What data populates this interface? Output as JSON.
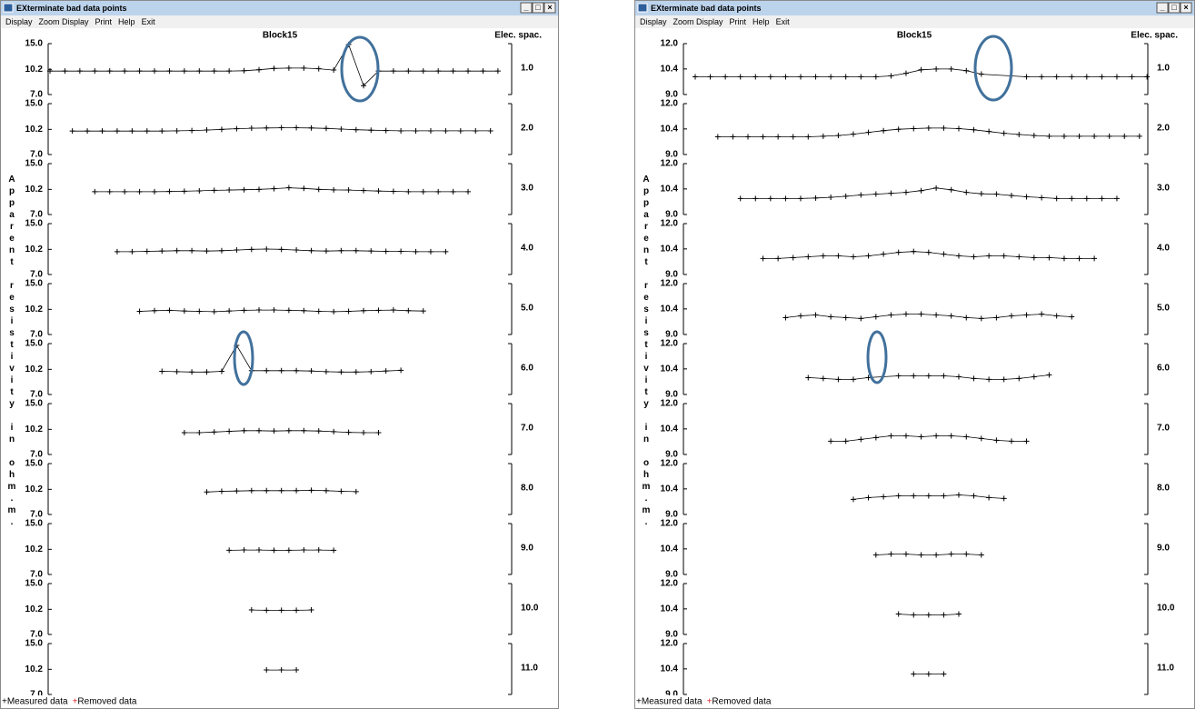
{
  "windows": [
    {
      "title": "EXterminate bad data points",
      "menu": [
        "Display",
        "Zoom Display",
        "Print",
        "Help",
        "Exit"
      ],
      "plot_title": "Block15",
      "right_label": "Elec. spac.",
      "y_label": "Apparent resistivity in ohm.m.",
      "log_scale": true,
      "ylim": [
        7,
        15
      ],
      "yticks": [
        {
          "value": 15,
          "label": "15.0"
        },
        {
          "value": 10.2,
          "label": "10.2"
        },
        {
          "value": 7,
          "label": "7.0"
        }
      ],
      "legend": [
        "Measured data",
        "Removed data"
      ],
      "rows": [
        {
          "spacing": "1.0",
          "x": [
            1.5,
            2.5,
            3.5,
            4.5,
            5.5,
            6.5,
            7.5,
            8.5,
            9.5,
            10.5,
            11.5,
            12.5,
            13.5,
            14.5,
            15.5,
            16.5,
            17.5,
            18.5,
            19.5,
            20.5,
            21.5,
            22.5,
            23.5,
            24.5,
            25.5,
            26.5,
            27.5,
            28.5,
            29.5,
            30.5,
            31.5
          ],
          "values": [
            9.95,
            9.95,
            9.95,
            9.95,
            9.95,
            9.95,
            9.95,
            9.95,
            9.95,
            9.95,
            9.95,
            9.95,
            9.95,
            10.0,
            10.15,
            10.35,
            10.4,
            10.4,
            10.3,
            10.1,
            14.8,
            8.0,
            9.95,
            9.95,
            9.95,
            9.95,
            9.95,
            9.95,
            9.95,
            9.95,
            9.95
          ]
        },
        {
          "spacing": "2.0",
          "x": [
            3,
            4,
            5,
            6,
            7,
            8,
            9,
            10,
            11,
            12,
            13,
            14,
            15,
            16,
            17,
            18,
            19,
            20,
            21,
            22,
            23,
            24,
            25,
            26,
            27,
            28,
            29,
            30,
            31
          ],
          "values": [
            9.95,
            9.95,
            9.95,
            9.95,
            9.95,
            9.95,
            9.95,
            9.98,
            10.02,
            10.1,
            10.2,
            10.3,
            10.38,
            10.42,
            10.45,
            10.45,
            10.42,
            10.35,
            10.25,
            10.15,
            10.08,
            10.02,
            9.98,
            9.98,
            9.98,
            9.98,
            9.98,
            9.98,
            9.98
          ]
        },
        {
          "spacing": "3.0",
          "x": [
            4.5,
            5.5,
            6.5,
            7.5,
            8.5,
            9.5,
            10.5,
            11.5,
            12.5,
            13.5,
            14.5,
            15.5,
            16.5,
            17.5,
            18.5,
            19.5,
            20.5,
            21.5,
            22.5,
            23.5,
            24.5,
            25.5,
            26.5,
            27.5,
            28.5,
            29.5
          ],
          "values": [
            9.85,
            9.85,
            9.85,
            9.85,
            9.85,
            9.88,
            9.92,
            9.98,
            10.05,
            10.1,
            10.15,
            10.2,
            10.3,
            10.45,
            10.35,
            10.2,
            10.12,
            10.1,
            10.02,
            9.95,
            9.9,
            9.85,
            9.85,
            9.85,
            9.85,
            9.85
          ]
        },
        {
          "spacing": "4.0",
          "x": [
            6,
            7,
            8,
            9,
            10,
            11,
            12,
            13,
            14,
            15,
            16,
            17,
            18,
            19,
            20,
            21,
            22,
            23,
            24,
            25,
            26,
            27,
            28
          ],
          "values": [
            9.85,
            9.85,
            9.9,
            9.95,
            10.0,
            10.0,
            9.95,
            10.0,
            10.1,
            10.2,
            10.25,
            10.2,
            10.1,
            10.0,
            9.95,
            10.0,
            10.0,
            9.95,
            9.9,
            9.9,
            9.85,
            9.85,
            9.85
          ]
        },
        {
          "spacing": "5.0",
          "x": [
            7.5,
            8.5,
            9.5,
            10.5,
            11.5,
            12.5,
            13.5,
            14.5,
            15.5,
            16.5,
            17.5,
            18.5,
            19.5,
            20.5,
            21.5,
            22.5,
            23.5,
            24.5,
            25.5,
            26.5
          ],
          "values": [
            9.9,
            10.0,
            10.05,
            9.95,
            9.9,
            9.85,
            9.95,
            10.05,
            10.1,
            10.1,
            10.05,
            10.0,
            9.9,
            9.85,
            9.9,
            10.0,
            10.05,
            10.1,
            10.0,
            9.95
          ]
        },
        {
          "spacing": "6.0",
          "x": [
            9,
            10,
            11,
            12,
            13,
            14,
            15,
            16,
            17,
            18,
            19,
            20,
            21,
            22,
            23,
            24,
            25
          ],
          "values": [
            9.9,
            9.85,
            9.8,
            9.8,
            9.9,
            14.6,
            10.0,
            10.0,
            10.0,
            10.0,
            9.95,
            9.85,
            9.8,
            9.8,
            9.85,
            9.95,
            10.05
          ]
        },
        {
          "spacing": "7.0",
          "x": [
            10.5,
            11.5,
            12.5,
            13.5,
            14.5,
            15.5,
            16.5,
            17.5,
            18.5,
            19.5,
            20.5,
            21.5,
            22.5,
            23.5
          ],
          "values": [
            9.7,
            9.7,
            9.8,
            9.9,
            10.0,
            10.0,
            9.95,
            10.0,
            10.0,
            9.95,
            9.85,
            9.75,
            9.7,
            9.7
          ]
        },
        {
          "spacing": "8.0",
          "x": [
            12,
            13,
            14,
            15,
            16,
            17,
            18,
            19,
            20,
            21,
            22
          ],
          "values": [
            9.8,
            9.9,
            9.95,
            10.0,
            10.0,
            10.0,
            10.0,
            10.05,
            10.0,
            9.9,
            9.85
          ]
        },
        {
          "spacing": "9.0",
          "x": [
            13.5,
            14.5,
            15.5,
            16.5,
            17.5,
            18.5,
            19.5,
            20.5
          ],
          "values": [
            10.05,
            10.1,
            10.1,
            10.05,
            10.05,
            10.1,
            10.1,
            10.05
          ]
        },
        {
          "spacing": "10.0",
          "x": [
            15,
            16,
            17,
            18,
            19
          ],
          "values": [
            10.1,
            10.05,
            10.05,
            10.05,
            10.1
          ]
        },
        {
          "spacing": "11.0",
          "x": [
            16,
            17,
            18
          ],
          "values": [
            10.1,
            10.1,
            10.1
          ]
        }
      ]
    },
    {
      "title": "EXterminate bad data points",
      "menu": [
        "Display",
        "Zoom Display",
        "Print",
        "Help",
        "Exit"
      ],
      "plot_title": "Block15",
      "right_label": "Elec. spac.",
      "y_label": "Apparent resistivity in ohm.m.",
      "log_scale": true,
      "ylim": [
        9,
        12
      ],
      "yticks": [
        {
          "value": 12,
          "label": "12.0"
        },
        {
          "value": 10.4,
          "label": "10.4"
        },
        {
          "value": 9,
          "label": "9.0"
        }
      ],
      "legend": [
        "Measured data",
        "Removed data"
      ],
      "rows": [
        {
          "spacing": "1.0",
          "x": [
            1.5,
            2.5,
            3.5,
            4.5,
            5.5,
            6.5,
            7.5,
            8.5,
            9.5,
            10.5,
            11.5,
            12.5,
            13.5,
            14.5,
            15.5,
            16.5,
            17.5,
            18.5,
            19.5,
            20.5,
            23.5,
            24.5,
            25.5,
            26.5,
            27.5,
            28.5,
            29.5,
            30.5,
            31.5
          ],
          "values": [
            9.95,
            9.95,
            9.95,
            9.95,
            9.95,
            9.95,
            9.95,
            9.95,
            9.95,
            9.95,
            9.95,
            9.95,
            9.95,
            10.0,
            10.15,
            10.35,
            10.4,
            10.4,
            10.3,
            10.1,
            9.95,
            9.95,
            9.95,
            9.95,
            9.95,
            9.95,
            9.95,
            9.95,
            9.95
          ]
        },
        {
          "spacing": "2.0",
          "x": [
            3,
            4,
            5,
            6,
            7,
            8,
            9,
            10,
            11,
            12,
            13,
            14,
            15,
            16,
            17,
            18,
            19,
            20,
            21,
            22,
            23,
            24,
            25,
            26,
            27,
            28,
            29,
            30,
            31
          ],
          "values": [
            9.95,
            9.95,
            9.95,
            9.95,
            9.95,
            9.95,
            9.95,
            9.98,
            10.02,
            10.1,
            10.2,
            10.3,
            10.38,
            10.42,
            10.45,
            10.45,
            10.42,
            10.35,
            10.25,
            10.15,
            10.08,
            10.02,
            9.98,
            9.98,
            9.98,
            9.98,
            9.98,
            9.98,
            9.98
          ]
        },
        {
          "spacing": "3.0",
          "x": [
            4.5,
            5.5,
            6.5,
            7.5,
            8.5,
            9.5,
            10.5,
            11.5,
            12.5,
            13.5,
            14.5,
            15.5,
            16.5,
            17.5,
            18.5,
            19.5,
            20.5,
            21.5,
            22.5,
            23.5,
            24.5,
            25.5,
            26.5,
            27.5,
            28.5,
            29.5
          ],
          "values": [
            9.85,
            9.85,
            9.85,
            9.85,
            9.85,
            9.88,
            9.92,
            9.98,
            10.05,
            10.1,
            10.15,
            10.2,
            10.3,
            10.45,
            10.35,
            10.2,
            10.12,
            10.1,
            10.02,
            9.95,
            9.9,
            9.85,
            9.85,
            9.85,
            9.85,
            9.85
          ]
        },
        {
          "spacing": "4.0",
          "x": [
            6,
            7,
            8,
            9,
            10,
            11,
            12,
            13,
            14,
            15,
            16,
            17,
            18,
            19,
            20,
            21,
            22,
            23,
            24,
            25,
            26,
            27,
            28
          ],
          "values": [
            9.85,
            9.85,
            9.9,
            9.95,
            10.0,
            10.0,
            9.95,
            10.0,
            10.1,
            10.2,
            10.25,
            10.2,
            10.1,
            10.0,
            9.95,
            10.0,
            10.0,
            9.95,
            9.9,
            9.9,
            9.85,
            9.85,
            9.85
          ]
        },
        {
          "spacing": "5.0",
          "x": [
            7.5,
            8.5,
            9.5,
            10.5,
            11.5,
            12.5,
            13.5,
            14.5,
            15.5,
            16.5,
            17.5,
            18.5,
            19.5,
            20.5,
            21.5,
            22.5,
            23.5,
            24.5,
            25.5,
            26.5
          ],
          "values": [
            9.9,
            10.0,
            10.05,
            9.95,
            9.9,
            9.85,
            9.95,
            10.05,
            10.1,
            10.1,
            10.05,
            10.0,
            9.9,
            9.85,
            9.9,
            10.0,
            10.05,
            10.1,
            10.0,
            9.95
          ]
        },
        {
          "spacing": "6.0",
          "x": [
            9,
            10,
            11,
            12,
            13,
            15,
            16,
            17,
            18,
            19,
            20,
            21,
            22,
            23,
            24,
            25
          ],
          "values": [
            9.9,
            9.85,
            9.8,
            9.8,
            9.9,
            10.0,
            10.0,
            10.0,
            10.0,
            9.95,
            9.85,
            9.8,
            9.8,
            9.85,
            9.95,
            10.05
          ]
        },
        {
          "spacing": "7.0",
          "x": [
            10.5,
            11.5,
            12.5,
            13.5,
            14.5,
            15.5,
            16.5,
            17.5,
            18.5,
            19.5,
            20.5,
            21.5,
            22.5,
            23.5
          ],
          "values": [
            9.7,
            9.7,
            9.8,
            9.9,
            10.0,
            10.0,
            9.95,
            10.0,
            10.0,
            9.95,
            9.85,
            9.75,
            9.7,
            9.7
          ]
        },
        {
          "spacing": "8.0",
          "x": [
            12,
            13,
            14,
            15,
            16,
            17,
            18,
            19,
            20,
            21,
            22
          ],
          "values": [
            9.8,
            9.9,
            9.95,
            10.0,
            10.0,
            10.0,
            10.0,
            10.05,
            10.0,
            9.9,
            9.85
          ]
        },
        {
          "spacing": "9.0",
          "x": [
            13.5,
            14.5,
            15.5,
            16.5,
            17.5,
            18.5,
            19.5,
            20.5
          ],
          "values": [
            10.05,
            10.1,
            10.1,
            10.05,
            10.05,
            10.1,
            10.1,
            10.05
          ]
        },
        {
          "spacing": "10.0",
          "x": [
            15,
            16,
            17,
            18,
            19
          ],
          "values": [
            10.1,
            10.05,
            10.05,
            10.05,
            10.1
          ]
        },
        {
          "spacing": "11.0",
          "x": [
            16,
            17,
            18
          ],
          "values": [
            10.1,
            10.1,
            10.1
          ]
        }
      ]
    }
  ]
}
